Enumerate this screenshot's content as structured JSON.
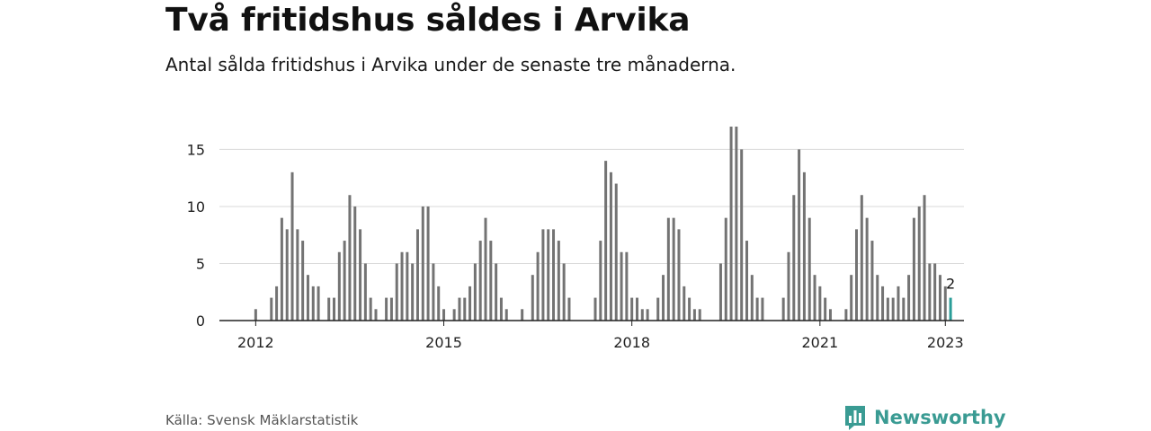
{
  "title": "Två fritidshus såldes i Arvika",
  "subtitle": "Antal sålda fritidshus i Arvika under de senaste tre månaderna.",
  "source": "Källa: Svensk Mäklarstatistik",
  "brand": {
    "name": "Newsworthy",
    "icon": "newsworthy-logo-icon",
    "color": "#3a9b93"
  },
  "chart_data": {
    "type": "bar",
    "title": "Två fritidshus såldes i Arvika",
    "subtitle": "Antal sålda fritidshus i Arvika under de senaste tre månaderna.",
    "x_unit": "month",
    "start": "2011-01",
    "ylim": [
      0,
      17
    ],
    "y_ticks": [
      0,
      5,
      10,
      15
    ],
    "x_ticks": [
      "2012",
      "2015",
      "2018",
      "2021",
      "2023"
    ],
    "grid": true,
    "bar_color": "#737373",
    "highlight_color": "#2a9d98",
    "values": [
      0,
      0,
      0,
      0,
      0,
      0,
      0,
      0,
      0,
      0,
      0,
      0,
      1,
      0,
      0,
      2,
      3,
      9,
      8,
      13,
      8,
      7,
      4,
      3,
      3,
      0,
      2,
      2,
      6,
      7,
      11,
      10,
      8,
      5,
      2,
      1,
      0,
      2,
      2,
      5,
      6,
      6,
      5,
      8,
      10,
      10,
      5,
      3,
      1,
      0,
      1,
      2,
      2,
      3,
      5,
      7,
      9,
      7,
      5,
      2,
      1,
      0,
      0,
      1,
      0,
      4,
      6,
      8,
      8,
      8,
      7,
      5,
      2,
      0,
      0,
      0,
      0,
      2,
      7,
      14,
      13,
      12,
      6,
      6,
      2,
      2,
      1,
      1,
      0,
      2,
      4,
      9,
      9,
      8,
      3,
      2,
      1,
      1,
      0,
      0,
      0,
      5,
      9,
      17,
      17,
      15,
      7,
      4,
      2,
      2,
      0,
      0,
      0,
      2,
      6,
      11,
      15,
      13,
      9,
      4,
      3,
      2,
      1,
      0,
      0,
      1,
      4,
      8,
      11,
      9,
      7,
      4,
      3,
      2,
      2,
      3,
      2,
      4,
      9,
      10,
      11,
      5,
      5,
      4,
      3,
      2
    ],
    "highlight_last": true,
    "last_label": "2"
  }
}
